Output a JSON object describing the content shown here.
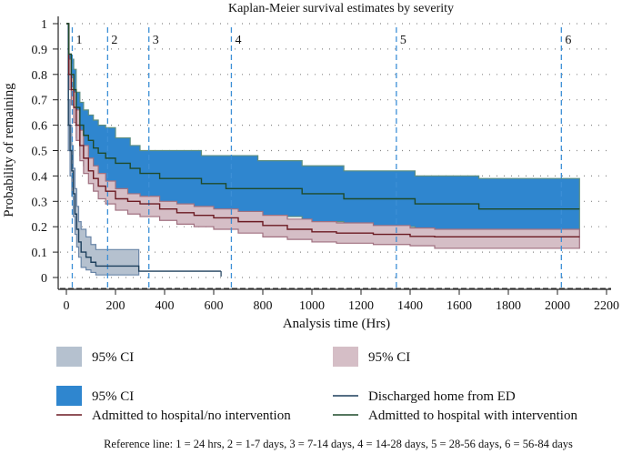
{
  "chart_data": {
    "type": "line",
    "subtype": "kaplan-meier step",
    "title": "Kaplan-Meier survival estimates by severity",
    "xlabel": "Analysis time (Hrs)",
    "ylabel": "Probability of remaining",
    "xlim": [
      0,
      2200
    ],
    "ylim": [
      0,
      1
    ],
    "xticks": [
      0,
      200,
      400,
      600,
      800,
      1000,
      1200,
      1400,
      1600,
      1800,
      2000,
      2200
    ],
    "yticks": [
      0,
      0.1,
      0.2,
      0.3,
      0.4,
      0.5,
      0.6,
      0.7,
      0.8,
      0.9,
      1
    ],
    "ytick_labels": [
      "0",
      "0.1",
      "0.2",
      "0.3",
      "0.4",
      "0.5",
      "0.6",
      "0.7",
      "0.8",
      "0.9",
      "1"
    ],
    "grid": "horizontal dotted",
    "reference_lines": [
      {
        "label": "1",
        "x": 24
      },
      {
        "label": "2",
        "x": 168
      },
      {
        "label": "3",
        "x": 336
      },
      {
        "label": "4",
        "x": 672
      },
      {
        "label": "5",
        "x": 1344
      },
      {
        "label": "6",
        "x": 2016
      }
    ],
    "reference_note": "Reference line: 1 = 24 hrs, 2 = 1-7 days, 3 = 7-14 days, 4 = 14-28 days, 5 = 28-56 days, 6 = 56-84 days",
    "series": [
      {
        "name": "Discharged home from ED",
        "color": "#1d3f5c",
        "ci_color": "#b5c1cf",
        "ci_edge": "#6a86a8",
        "x": [
          0,
          8,
          15,
          22,
          28,
          35,
          42,
          50,
          60,
          80,
          100,
          120,
          295,
          630
        ],
        "y": [
          1,
          0.6,
          0.5,
          0.42,
          0.33,
          0.25,
          0.19,
          0.14,
          0.1,
          0.08,
          0.06,
          0.045,
          0.025,
          0.025
        ],
        "ci_upper": [
          1,
          0.7,
          0.6,
          0.52,
          0.43,
          0.35,
          0.28,
          0.22,
          0.19,
          0.16,
          0.13,
          0.11,
          0.11,
          null
        ],
        "ci_lower": [
          1,
          0.5,
          0.4,
          0.32,
          0.24,
          0.17,
          0.12,
          0.08,
          0.04,
          0.03,
          0.02,
          0.01,
          0.01,
          null
        ],
        "ci_end": 295
      },
      {
        "name": "Admitted to hospital/no intervention",
        "color": "#6b1a22",
        "ci_color": "#d5bec6",
        "ci_edge": "#a07080",
        "x": [
          0,
          10,
          20,
          30,
          40,
          55,
          70,
          90,
          110,
          130,
          160,
          200,
          250,
          300,
          380,
          450,
          520,
          600,
          700,
          800,
          900,
          1000,
          1100,
          1250,
          1400,
          1500,
          1700,
          2090
        ],
        "y": [
          1,
          0.8,
          0.74,
          0.67,
          0.6,
          0.52,
          0.47,
          0.42,
          0.39,
          0.36,
          0.34,
          0.31,
          0.3,
          0.29,
          0.27,
          0.255,
          0.245,
          0.235,
          0.22,
          0.205,
          0.19,
          0.18,
          0.175,
          0.17,
          0.162,
          0.16,
          0.16,
          0.16
        ],
        "ci_upper": [
          1,
          0.86,
          0.8,
          0.73,
          0.66,
          0.58,
          0.52,
          0.47,
          0.44,
          0.41,
          0.38,
          0.35,
          0.33,
          0.32,
          0.3,
          0.29,
          0.28,
          0.27,
          0.26,
          0.245,
          0.23,
          0.22,
          0.215,
          0.205,
          0.195,
          0.19,
          0.19,
          0.19
        ],
        "ci_lower": [
          1,
          0.74,
          0.68,
          0.61,
          0.54,
          0.46,
          0.41,
          0.37,
          0.34,
          0.31,
          0.29,
          0.265,
          0.25,
          0.24,
          0.225,
          0.21,
          0.2,
          0.19,
          0.175,
          0.16,
          0.15,
          0.14,
          0.135,
          0.13,
          0.125,
          0.115,
          0.115,
          0.115
        ]
      },
      {
        "name": "Admitted to hospital with intervention",
        "color": "#1f4a2a",
        "ci_color": "#2f86cf",
        "ci_edge": "#5f8f80",
        "x": [
          0,
          10,
          20,
          30,
          40,
          55,
          70,
          90,
          110,
          130,
          160,
          200,
          260,
          300,
          380,
          450,
          550,
          650,
          780,
          900,
          960,
          1130,
          1420,
          1680,
          2090
        ],
        "y": [
          1,
          0.88,
          0.8,
          0.74,
          0.67,
          0.6,
          0.56,
          0.54,
          0.51,
          0.49,
          0.47,
          0.45,
          0.43,
          0.41,
          0.39,
          0.39,
          0.37,
          0.35,
          0.35,
          0.35,
          0.33,
          0.31,
          0.29,
          0.27,
          0.27
        ],
        "ci_upper": [
          1,
          0.88,
          0.86,
          0.82,
          0.73,
          0.69,
          0.66,
          0.64,
          0.62,
          0.6,
          0.59,
          0.55,
          0.52,
          0.5,
          0.5,
          0.5,
          0.48,
          0.48,
          0.46,
          0.46,
          0.44,
          0.42,
          0.4,
          0.39,
          0.39
        ],
        "ci_lower": [
          1,
          0.78,
          0.7,
          0.62,
          0.55,
          0.48,
          0.44,
          0.42,
          0.4,
          0.38,
          0.36,
          0.33,
          0.3,
          0.28,
          0.26,
          0.26,
          0.25,
          0.24,
          0.24,
          0.24,
          0.22,
          0.2,
          0.18,
          0.16,
          0.16
        ]
      }
    ],
    "legend": {
      "position": "bottom",
      "entries": [
        {
          "label": "95% CI",
          "kind": "patch",
          "color": "#b5c1cf"
        },
        {
          "label": "95% CI",
          "kind": "patch",
          "color": "#d5bec6"
        },
        {
          "label": "95% CI",
          "kind": "patch",
          "color": "#2f86cf"
        },
        {
          "label": "Discharged home from ED",
          "kind": "line",
          "color": "#1d3f5c"
        },
        {
          "label": "Admitted to hospital/no intervention",
          "kind": "line",
          "color": "#6b1a22"
        },
        {
          "label": "Admitted to hospital with intervention",
          "kind": "line",
          "color": "#1f4a2a"
        }
      ]
    },
    "ref_line_color": "#3c8fd6"
  }
}
